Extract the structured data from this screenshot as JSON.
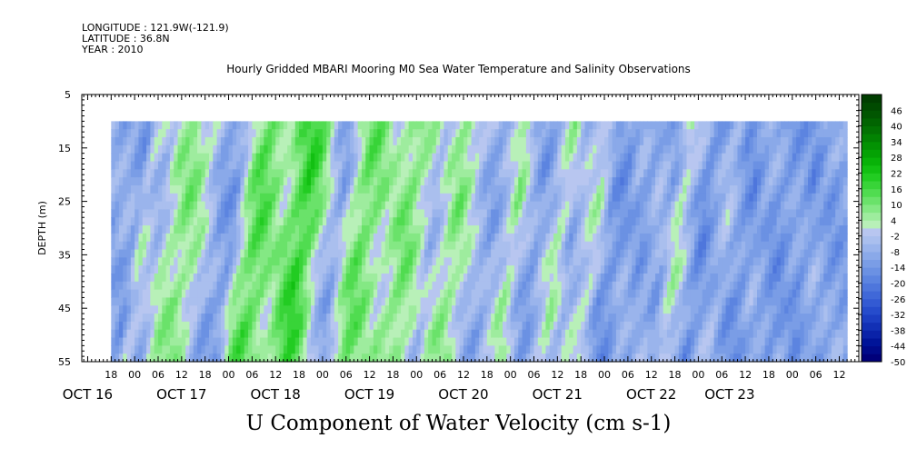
{
  "header": {
    "longitude": "LONGITUDE : 121.9W(-121.9)",
    "latitude": "LATITUDE : 36.8N",
    "year": "YEAR : 2010"
  },
  "chart_data": {
    "type": "heatmap",
    "title": "Hourly Gridded MBARI Mooring M0 Sea Water Temperature and Salinity Observations",
    "xlabel": "U Component of Water Velocity (cm s-1)",
    "ylabel": "DEPTH (m)",
    "y_ticks": [
      "5",
      "15",
      "25",
      "35",
      "45",
      "55"
    ],
    "ylim": [
      5,
      55
    ],
    "y_data_range": [
      10,
      55
    ],
    "hour_ticks": [
      {
        "hour": -6,
        "label": "18"
      },
      {
        "hour": 0,
        "label": "00"
      },
      {
        "hour": 6,
        "label": "06"
      },
      {
        "hour": 12,
        "label": "12"
      },
      {
        "hour": 18,
        "label": "18"
      },
      {
        "hour": 24,
        "label": "00"
      },
      {
        "hour": 30,
        "label": "06"
      },
      {
        "hour": 36,
        "label": "12"
      },
      {
        "hour": 42,
        "label": "18"
      },
      {
        "hour": 48,
        "label": "00"
      },
      {
        "hour": 54,
        "label": "06"
      },
      {
        "hour": 60,
        "label": "12"
      },
      {
        "hour": 66,
        "label": "18"
      },
      {
        "hour": 72,
        "label": "00"
      },
      {
        "hour": 78,
        "label": "06"
      },
      {
        "hour": 84,
        "label": "12"
      },
      {
        "hour": 90,
        "label": "18"
      },
      {
        "hour": 96,
        "label": "00"
      },
      {
        "hour": 102,
        "label": "06"
      },
      {
        "hour": 108,
        "label": "12"
      },
      {
        "hour": 114,
        "label": "18"
      },
      {
        "hour": 120,
        "label": "00"
      },
      {
        "hour": 126,
        "label": "06"
      },
      {
        "hour": 132,
        "label": "12"
      },
      {
        "hour": 138,
        "label": "18"
      },
      {
        "hour": 144,
        "label": "00"
      },
      {
        "hour": 150,
        "label": "06"
      },
      {
        "hour": 156,
        "label": "12"
      },
      {
        "hour": 162,
        "label": "18"
      },
      {
        "hour": 168,
        "label": "00"
      },
      {
        "hour": 174,
        "label": "06"
      },
      {
        "hour": 180,
        "label": "12"
      }
    ],
    "date_ticks": [
      {
        "hour": -12,
        "label": "OCT 16"
      },
      {
        "hour": 12,
        "label": "OCT 17"
      },
      {
        "hour": 36,
        "label": "OCT 18"
      },
      {
        "hour": 60,
        "label": "OCT 19"
      },
      {
        "hour": 84,
        "label": "OCT 20"
      },
      {
        "hour": 108,
        "label": "OCT 21"
      },
      {
        "hour": 132,
        "label": "OCT 22"
      },
      {
        "hour": 152,
        "label": "OCT 23"
      }
    ],
    "xlim_hours": [
      -13.5,
      185
    ],
    "data_x_range_hours": [
      -6,
      182
    ],
    "colorbar": {
      "labels": [
        "46",
        "40",
        "34",
        "28",
        "22",
        "16",
        "10",
        "4",
        "-2",
        "-8",
        "-14",
        "-20",
        "-26",
        "-32",
        "-38",
        "-44",
        "-50"
      ],
      "levels": [
        -50,
        -47,
        -44,
        -41,
        -38,
        -35,
        -32,
        -29,
        -26,
        -23,
        -20,
        -17,
        -14,
        -11,
        -8,
        -5,
        -2,
        1,
        4,
        7,
        10,
        13,
        16,
        19,
        22,
        25,
        28,
        31,
        34,
        37,
        40,
        43,
        46,
        49,
        52
      ],
      "colors": [
        "#00007a",
        "#000a8a",
        "#001499",
        "#0a22a8",
        "#1230b5",
        "#1c3ec2",
        "#264ccc",
        "#335ad3",
        "#4068d8",
        "#4e76dc",
        "#5c84e0",
        "#6b91e3",
        "#7a9de6",
        "#8aa9e9",
        "#9ab4ec",
        "#aabfee",
        "#b8c6f0",
        "#b8f0b8",
        "#9eec9e",
        "#84e884",
        "#6ae26a",
        "#50dc50",
        "#38d438",
        "#22cc22",
        "#12c012",
        "#08b208",
        "#04a204",
        "#039203",
        "#028202",
        "#027202",
        "#016401",
        "#015601",
        "#004a00",
        "#003e00"
      ]
    },
    "velocity_profile": [
      {
        "hour": -6,
        "value": -10
      },
      {
        "hour": -3,
        "value": -8
      },
      {
        "hour": 0,
        "value": -12
      },
      {
        "hour": 2,
        "value": 0
      },
      {
        "hour": 6,
        "value": -6
      },
      {
        "hour": 9,
        "value": 4
      },
      {
        "hour": 13,
        "value": 8
      },
      {
        "hour": 17,
        "value": 2
      },
      {
        "hour": 21,
        "value": -10
      },
      {
        "hour": 25,
        "value": -12
      },
      {
        "hour": 28,
        "value": 6
      },
      {
        "hour": 31,
        "value": 14
      },
      {
        "hour": 34,
        "value": 10
      },
      {
        "hour": 37,
        "value": 4
      },
      {
        "hour": 40,
        "value": 12
      },
      {
        "hour": 43,
        "value": 18
      },
      {
        "hour": 46,
        "value": 10
      },
      {
        "hour": 49,
        "value": -4
      },
      {
        "hour": 52,
        "value": -10
      },
      {
        "hour": 55,
        "value": 4
      },
      {
        "hour": 58,
        "value": 12
      },
      {
        "hour": 61,
        "value": 8
      },
      {
        "hour": 64,
        "value": 2
      },
      {
        "hour": 67,
        "value": 6
      },
      {
        "hour": 70,
        "value": 10
      },
      {
        "hour": 73,
        "value": 4
      },
      {
        "hour": 76,
        "value": -6
      },
      {
        "hour": 79,
        "value": 2
      },
      {
        "hour": 82,
        "value": 8
      },
      {
        "hour": 85,
        "value": 2
      },
      {
        "hour": 88,
        "value": -6
      },
      {
        "hour": 91,
        "value": -10
      },
      {
        "hour": 94,
        "value": -4
      },
      {
        "hour": 97,
        "value": 6
      },
      {
        "hour": 100,
        "value": -6
      },
      {
        "hour": 103,
        "value": -12
      },
      {
        "hour": 106,
        "value": -4
      },
      {
        "hour": 109,
        "value": 4
      },
      {
        "hour": 112,
        "value": -8
      },
      {
        "hour": 115,
        "value": -2
      },
      {
        "hour": 118,
        "value": 2
      },
      {
        "hour": 121,
        "value": -12
      },
      {
        "hour": 124,
        "value": -14
      },
      {
        "hour": 127,
        "value": -8
      },
      {
        "hour": 130,
        "value": -12
      },
      {
        "hour": 133,
        "value": -6
      },
      {
        "hour": 136,
        "value": -10
      },
      {
        "hour": 139,
        "value": 4
      },
      {
        "hour": 142,
        "value": -6
      },
      {
        "hour": 145,
        "value": -16
      },
      {
        "hour": 148,
        "value": -10
      },
      {
        "hour": 151,
        "value": -4
      },
      {
        "hour": 154,
        "value": -12
      },
      {
        "hour": 157,
        "value": -14
      },
      {
        "hour": 160,
        "value": -8
      },
      {
        "hour": 163,
        "value": -12
      },
      {
        "hour": 166,
        "value": -14
      },
      {
        "hour": 169,
        "value": -10
      },
      {
        "hour": 172,
        "value": -14
      },
      {
        "hour": 175,
        "value": -8
      },
      {
        "hour": 178,
        "value": -12
      },
      {
        "hour": 182,
        "value": -10
      }
    ]
  }
}
